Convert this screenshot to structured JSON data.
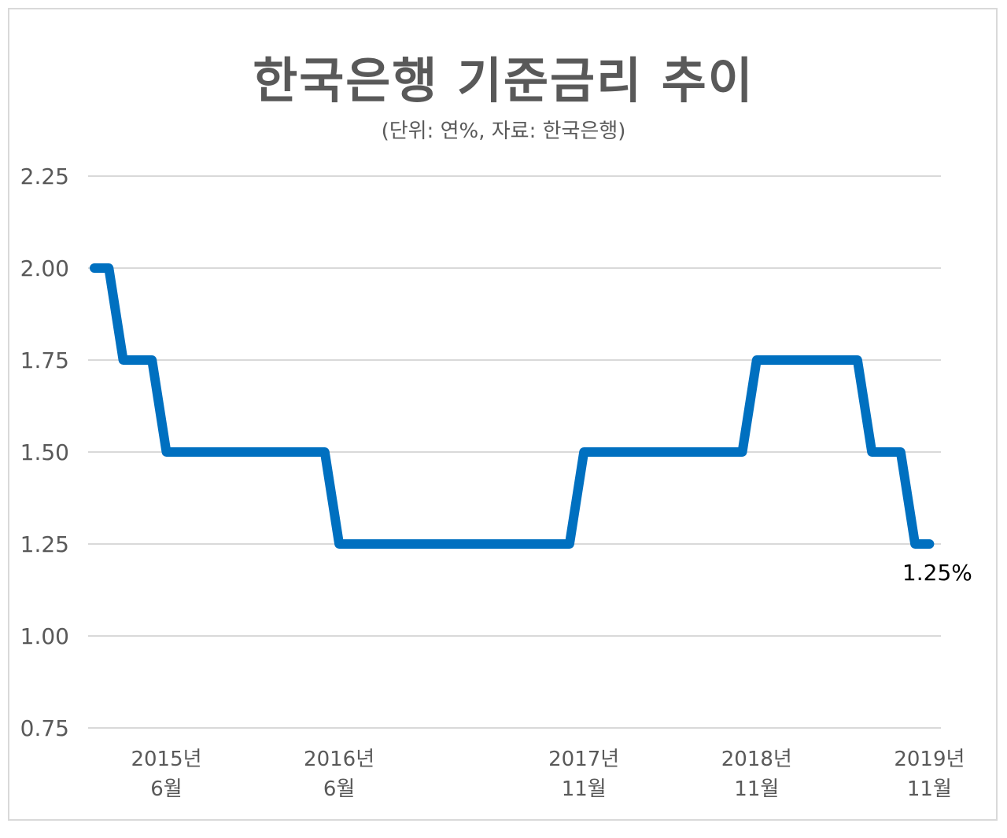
{
  "title": "한국은행 기준금리 추이",
  "subtitle": "(단위: 연%, 자료: 한국은행)",
  "chart_data": {
    "type": "line",
    "title": "한국은행 기준금리 추이",
    "subtitle": "(단위: 연%, 자료: 한국은행)",
    "ylim": [
      0.75,
      2.25
    ],
    "y_ticks": [
      "2.25",
      "2.00",
      "1.75",
      "1.50",
      "1.25",
      "1.00",
      "0.75"
    ],
    "x_ticks": [
      {
        "line1": "2015년",
        "line2": "6월"
      },
      {
        "line1": "2016년",
        "line2": "6월"
      },
      {
        "line1": "2017년",
        "line2": "11월"
      },
      {
        "line1": "2018년",
        "line2": "11월"
      },
      {
        "line1": "2019년",
        "line2": "11월"
      }
    ],
    "grid": true,
    "legend": "none",
    "line_color": "#0070c0",
    "step_series": [
      {
        "x": "2015-01",
        "y": 2.0
      },
      {
        "x": "2015-02",
        "y": 2.0
      },
      {
        "x": "2015-03",
        "y": 1.75
      },
      {
        "x": "2015-05",
        "y": 1.75
      },
      {
        "x": "2015-06",
        "y": 1.5
      },
      {
        "x": "2016-05",
        "y": 1.5
      },
      {
        "x": "2016-06",
        "y": 1.25
      },
      {
        "x": "2017-10",
        "y": 1.25
      },
      {
        "x": "2017-11",
        "y": 1.5
      },
      {
        "x": "2018-10",
        "y": 1.5
      },
      {
        "x": "2018-11",
        "y": 1.75
      },
      {
        "x": "2019-06",
        "y": 1.75
      },
      {
        "x": "2019-07",
        "y": 1.5
      },
      {
        "x": "2019-09",
        "y": 1.5
      },
      {
        "x": "2019-10",
        "y": 1.25
      },
      {
        "x": "2019-11",
        "y": 1.25
      }
    ],
    "end_label": "1.25%"
  }
}
